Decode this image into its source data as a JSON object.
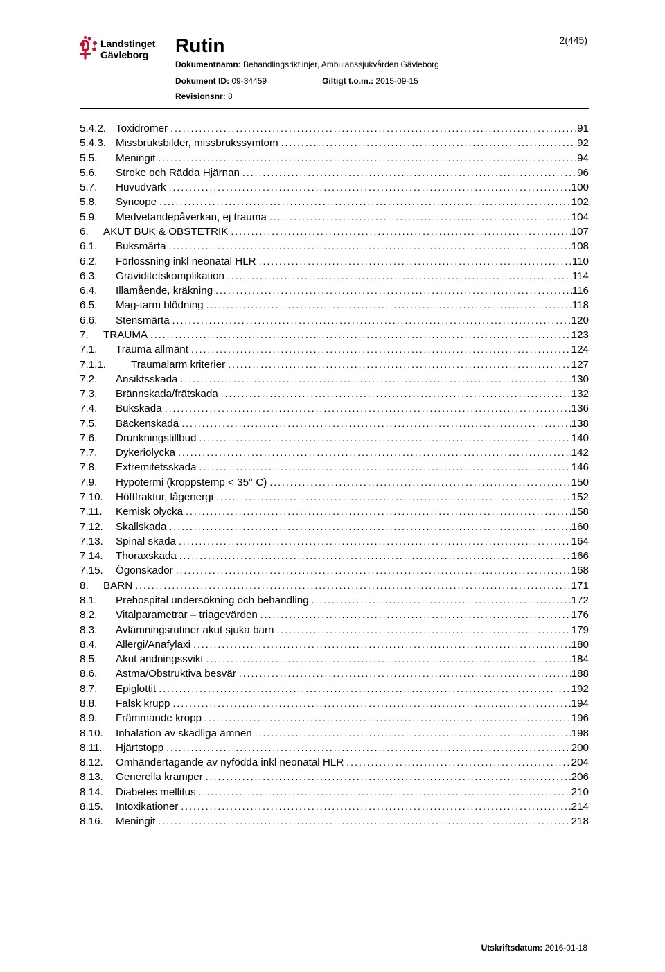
{
  "header": {
    "title": "Rutin",
    "page_indicator": "2(445)",
    "docname_label": "Dokumentnamn:",
    "docname_value": "Behandlingsriktlinjer, Ambulanssjukvården Gävleborg",
    "docid_label": "Dokument ID:",
    "docid_value": "09-34459",
    "valid_label": "Giltigt t.o.m.:",
    "valid_value": "2015-09-15",
    "rev_label": "Revisionsnr:",
    "rev_value": "8",
    "logo_text_top": "Landstinget",
    "logo_text_bottom": "Gävleborg"
  },
  "toc": [
    {
      "indent": 1,
      "num": "5.4.2.",
      "label": "Toxidromer",
      "page": "91"
    },
    {
      "indent": 1,
      "num": "5.4.3.",
      "label": "Missbruksbilder, missbrukssymtom",
      "page": "92"
    },
    {
      "indent": 1,
      "num": "5.5.",
      "label": "Meningit",
      "page": "94"
    },
    {
      "indent": 1,
      "num": "5.6.",
      "label": "Stroke och Rädda Hjärnan",
      "page": "96"
    },
    {
      "indent": 1,
      "num": "5.7.",
      "label": "Huvudvärk",
      "page": "100"
    },
    {
      "indent": 1,
      "num": "5.8.",
      "label": "Syncope",
      "page": "102"
    },
    {
      "indent": 1,
      "num": "5.9.",
      "label": "Medvetandepåverkan, ej trauma",
      "page": "104"
    },
    {
      "indent": 0,
      "num": "6.",
      "label": "AKUT BUK & OBSTETRIK",
      "page": "107"
    },
    {
      "indent": 1,
      "num": "6.1.",
      "label": "Buksmärta",
      "page": "108"
    },
    {
      "indent": 1,
      "num": "6.2.",
      "label": "Förlossning inkl neonatal HLR",
      "page": "110"
    },
    {
      "indent": 1,
      "num": "6.3.",
      "label": "Graviditetskomplikation",
      "page": "114"
    },
    {
      "indent": 1,
      "num": "6.4.",
      "label": "Illamående, kräkning",
      "page": "116"
    },
    {
      "indent": 1,
      "num": "6.5.",
      "label": "Mag-tarm blödning",
      "page": "118"
    },
    {
      "indent": 1,
      "num": "6.6.",
      "label": "Stensmärta",
      "page": "120"
    },
    {
      "indent": 0,
      "num": "7.",
      "label": "TRAUMA",
      "page": "123"
    },
    {
      "indent": 1,
      "num": "7.1.",
      "label": "Trauma allmänt",
      "page": "124"
    },
    {
      "indent": 2,
      "num": "7.1.1.",
      "label": "Traumalarm kriterier",
      "page": "127"
    },
    {
      "indent": 1,
      "num": "7.2.",
      "label": "Ansiktsskada",
      "page": "130"
    },
    {
      "indent": 1,
      "num": "7.3.",
      "label": "Brännskada/frätskada",
      "page": "132"
    },
    {
      "indent": 1,
      "num": "7.4.",
      "label": "Bukskada",
      "page": "136"
    },
    {
      "indent": 1,
      "num": "7.5.",
      "label": "Bäckenskada",
      "page": "138"
    },
    {
      "indent": 1,
      "num": "7.6.",
      "label": "Drunkningstillbud",
      "page": "140"
    },
    {
      "indent": 1,
      "num": "7.7.",
      "label": "Dykeriolycka",
      "page": "142"
    },
    {
      "indent": 1,
      "num": "7.8.",
      "label": "Extremitetsskada",
      "page": "146"
    },
    {
      "indent": 1,
      "num": "7.9.",
      "label": "Hypotermi (kroppstemp < 35° C)",
      "page": "150"
    },
    {
      "indent": 1,
      "num": "7.10.",
      "label": "Höftfraktur, lågenergi",
      "page": "152"
    },
    {
      "indent": 1,
      "num": "7.11.",
      "label": "Kemisk olycka",
      "page": "158"
    },
    {
      "indent": 1,
      "num": "7.12.",
      "label": "Skallskada",
      "page": "160"
    },
    {
      "indent": 1,
      "num": "7.13.",
      "label": "Spinal skada",
      "page": "164"
    },
    {
      "indent": 1,
      "num": "7.14.",
      "label": "Thoraxskada",
      "page": "166"
    },
    {
      "indent": 1,
      "num": "7.15.",
      "label": "Ögonskador",
      "page": "168"
    },
    {
      "indent": 0,
      "num": "8.",
      "label": "BARN",
      "page": "171"
    },
    {
      "indent": 1,
      "num": "8.1.",
      "label": "Prehospital undersökning och behandling",
      "page": "172"
    },
    {
      "indent": 1,
      "num": "8.2.",
      "label": "Vitalparametrar – triagevärden",
      "page": "176"
    },
    {
      "indent": 1,
      "num": "8.3.",
      "label": "Avlämningsrutiner akut sjuka barn",
      "page": "179"
    },
    {
      "indent": 1,
      "num": "8.4.",
      "label": "Allergi/Anafylaxi",
      "page": "180"
    },
    {
      "indent": 1,
      "num": "8.5.",
      "label": "Akut  andningssvikt",
      "page": "184"
    },
    {
      "indent": 1,
      "num": "8.6.",
      "label": "Astma/Obstruktiva besvär",
      "page": "188"
    },
    {
      "indent": 1,
      "num": "8.7.",
      "label": "Epiglottit",
      "page": "192"
    },
    {
      "indent": 1,
      "num": "8.8.",
      "label": "Falsk krupp",
      "page": "194"
    },
    {
      "indent": 1,
      "num": "8.9.",
      "label": "Främmande kropp",
      "page": "196"
    },
    {
      "indent": 1,
      "num": "8.10.",
      "label": "Inhalation av skadliga ämnen",
      "page": "198"
    },
    {
      "indent": 1,
      "num": "8.11.",
      "label": "Hjärtstopp",
      "page": "200"
    },
    {
      "indent": 1,
      "num": "8.12.",
      "label": "Omhändertagande av nyfödda inkl neonatal HLR",
      "page": "204"
    },
    {
      "indent": 1,
      "num": "8.13.",
      "label": "Generella kramper",
      "page": "206"
    },
    {
      "indent": 1,
      "num": "8.14.",
      "label": "Diabetes mellitus",
      "page": "210"
    },
    {
      "indent": 1,
      "num": "8.15.",
      "label": "Intoxikationer",
      "page": "214"
    },
    {
      "indent": 1,
      "num": "8.16.",
      "label": "Meningit",
      "page": "218"
    }
  ],
  "footer": {
    "label": "Utskriftsdatum:",
    "value": "2016-01-18"
  },
  "colors": {
    "text": "#000000",
    "logo_red": "#c8102e",
    "background": "#ffffff"
  }
}
